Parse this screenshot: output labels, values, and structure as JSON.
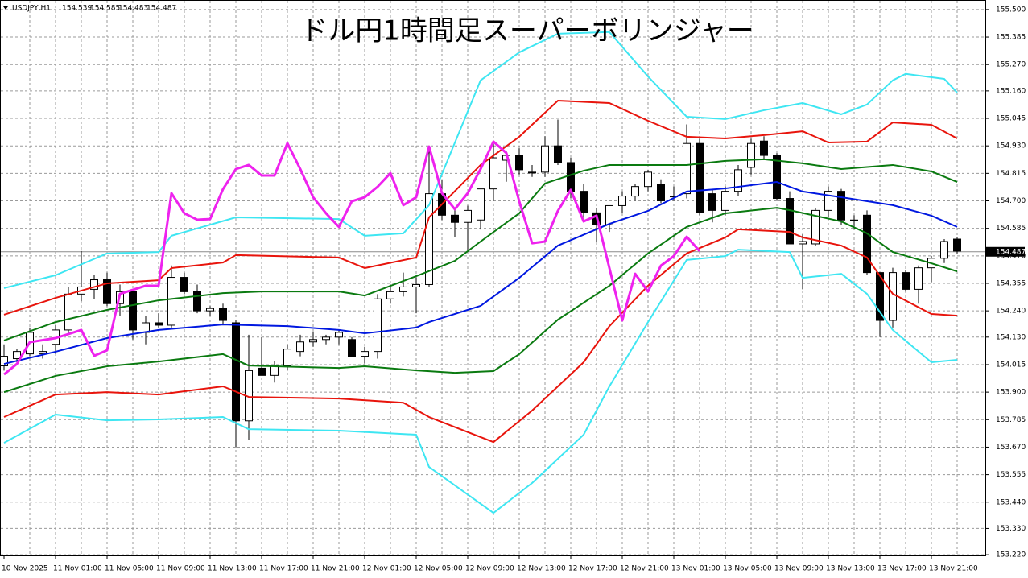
{
  "chart_data": {
    "type": "candlestick",
    "title": "ドル円1時間足スーパーボリンジャー",
    "header": {
      "symbol": "USDJPY,H1",
      "open": 154.539,
      "high": 154.585,
      "low": 154.483,
      "close": 154.487
    },
    "categories": [
      "10 Nov 2025",
      null,
      null,
      null,
      "11 Nov 01:00",
      null,
      null,
      null,
      "11 Nov 05:00",
      null,
      null,
      null,
      "11 Nov 09:00",
      null,
      null,
      null,
      "11 Nov 13:00",
      null,
      null,
      null,
      "11 Nov 17:00",
      null,
      null,
      null,
      "11 Nov 21:00",
      null,
      null,
      null,
      "12 Nov 01:00",
      null,
      null,
      null,
      "12 Nov 05:00",
      null,
      null,
      null,
      "12 Nov 09:00",
      null,
      null,
      null,
      "12 Nov 13:00",
      null,
      null,
      null,
      "12 Nov 17:00",
      null,
      null,
      null,
      "12 Nov 21:00",
      null,
      null,
      null,
      "13 Nov 01:00",
      null,
      null,
      null,
      "13 Nov 05:00",
      null,
      null,
      null,
      "13 Nov 09:00",
      null,
      null,
      null,
      "13 Nov 13:00",
      null,
      null,
      null,
      "13 Nov 17:00",
      null,
      null,
      null,
      "13 Nov 21:00",
      null,
      null
    ],
    "open": [
      154.01,
      154.04,
      154.06,
      154.06,
      154.1,
      154.16,
      154.31,
      154.33,
      154.37,
      154.27,
      154.32,
      154.15,
      154.19,
      154.18,
      154.38,
      154.32,
      154.24,
      154.25,
      154.19,
      153.78,
      154.0,
      153.97,
      154.01,
      154.07,
      154.11,
      154.12,
      154.13,
      154.12,
      154.05,
      154.07,
      154.29,
      154.32,
      154.34,
      154.35,
      154.73,
      154.64,
      154.61,
      154.62,
      154.75,
      154.87,
      154.89,
      154.82,
      154.82,
      154.93,
      154.86,
      154.74,
      154.65,
      154.6,
      154.68,
      154.72,
      154.76,
      154.77,
      154.72,
      154.73,
      154.94,
      154.73,
      154.66,
      154.74,
      154.84,
      154.95,
      154.89,
      154.71,
      154.52,
      154.52,
      154.66,
      154.74,
      154.62,
      154.64,
      154.4,
      154.2,
      154.4,
      154.33,
      154.42,
      154.46,
      154.54
    ],
    "high": [
      154.1,
      154.08,
      154.17,
      154.1,
      154.18,
      154.34,
      154.49,
      154.39,
      154.4,
      154.35,
      154.33,
      154.22,
      154.23,
      154.43,
      154.4,
      154.35,
      154.26,
      154.27,
      154.2,
      154.14,
      154.13,
      154.03,
      154.1,
      154.14,
      154.15,
      154.14,
      154.16,
      154.13,
      154.09,
      154.31,
      154.35,
      154.4,
      154.38,
      154.93,
      154.79,
      154.67,
      154.68,
      154.75,
      154.94,
      154.91,
      154.92,
      154.85,
      154.97,
      155.04,
      154.88,
      154.77,
      154.67,
      154.68,
      154.74,
      154.77,
      154.83,
      154.79,
      154.76,
      155.02,
      154.96,
      154.75,
      154.76,
      154.85,
      154.96,
      154.97,
      154.9,
      154.74,
      154.56,
      154.67,
      154.76,
      154.75,
      154.64,
      154.66,
      154.4,
      154.42,
      154.41,
      154.43,
      154.47,
      154.54,
      154.55
    ],
    "low": [
      153.99,
      154.02,
      154.05,
      154.04,
      154.06,
      154.14,
      154.28,
      154.29,
      154.26,
      154.22,
      154.12,
      154.1,
      154.17,
      154.17,
      154.31,
      154.23,
      154.22,
      154.18,
      153.67,
      153.7,
      153.97,
      153.94,
      153.99,
      154.05,
      154.09,
      154.1,
      154.1,
      154.05,
      154.02,
      154.04,
      154.27,
      154.3,
      154.23,
      154.34,
      154.62,
      154.55,
      154.49,
      154.58,
      154.7,
      154.78,
      154.81,
      154.8,
      154.8,
      154.85,
      154.71,
      154.63,
      154.53,
      154.57,
      154.65,
      154.7,
      154.74,
      154.69,
      154.7,
      154.71,
      154.64,
      154.61,
      154.64,
      154.72,
      154.81,
      154.87,
      154.7,
      154.52,
      154.33,
      154.51,
      154.63,
      154.6,
      154.58,
      154.39,
      154.13,
      154.17,
      154.32,
      154.27,
      154.36,
      154.44,
      154.48
    ],
    "close": [
      154.05,
      154.07,
      154.15,
      154.07,
      154.16,
      154.31,
      154.34,
      154.37,
      154.27,
      154.32,
      154.16,
      154.19,
      154.18,
      154.38,
      154.32,
      154.24,
      154.25,
      154.2,
      153.78,
      153.99,
      153.97,
      154.01,
      154.08,
      154.11,
      154.12,
      154.13,
      154.15,
      154.05,
      154.07,
      154.29,
      154.32,
      154.34,
      154.35,
      154.73,
      154.64,
      154.61,
      154.66,
      154.75,
      154.88,
      154.89,
      154.83,
      154.82,
      154.93,
      154.86,
      154.74,
      154.65,
      154.6,
      154.68,
      154.72,
      154.76,
      154.82,
      154.7,
      154.72,
      154.94,
      154.65,
      154.66,
      154.74,
      154.83,
      154.94,
      154.89,
      154.71,
      154.52,
      154.53,
      154.66,
      154.74,
      154.62,
      154.62,
      154.4,
      154.2,
      154.4,
      154.33,
      154.42,
      154.46,
      154.53,
      154.49
    ],
    "up_color": "#ffffff",
    "down_color": "#000000",
    "lines": [
      {
        "color": "#3ee6f2",
        "x": [
          0,
          4,
          8,
          12,
          13,
          18,
          26,
          28,
          31,
          33,
          37,
          40,
          43,
          47,
          50,
          53,
          56,
          59,
          62,
          65,
          67,
          69,
          70,
          73,
          74
        ],
        "values": [
          154.335,
          154.389,
          154.48,
          154.486,
          154.554,
          154.631,
          154.624,
          154.554,
          154.564,
          154.682,
          155.204,
          155.321,
          155.399,
          155.406,
          155.22,
          155.052,
          155.042,
          155.079,
          155.109,
          155.062,
          155.103,
          155.204,
          155.231,
          155.21,
          155.153
        ]
      },
      {
        "color": "#e8140c",
        "x": [
          0,
          4,
          8,
          12,
          13,
          17,
          18,
          26,
          28,
          32,
          33,
          37,
          40,
          43,
          47,
          50,
          53,
          56,
          59,
          62,
          64,
          67,
          69,
          72,
          74
        ],
        "values": [
          154.224,
          154.294,
          154.355,
          154.368,
          154.419,
          154.442,
          154.473,
          154.463,
          154.419,
          154.463,
          154.631,
          154.85,
          154.968,
          155.119,
          155.109,
          155.035,
          154.968,
          154.961,
          154.975,
          154.991,
          154.944,
          154.948,
          155.028,
          155.018,
          154.961
        ]
      },
      {
        "color": "#0a7a10",
        "x": [
          0,
          4,
          8,
          12,
          17,
          20,
          26,
          28,
          32,
          35,
          37,
          40,
          42,
          45,
          47,
          53,
          56,
          59,
          62,
          65,
          69,
          72,
          74
        ],
        "values": [
          154.116,
          154.193,
          154.244,
          154.284,
          154.314,
          154.321,
          154.321,
          154.304,
          154.385,
          154.449,
          154.53,
          154.648,
          154.773,
          154.826,
          154.85,
          154.85,
          154.867,
          154.874,
          154.857,
          154.833,
          154.85,
          154.823,
          154.779
        ]
      },
      {
        "color": "#0018e0",
        "x": [
          0,
          4,
          8,
          12,
          17,
          22,
          26,
          28,
          32,
          33,
          37,
          40,
          43,
          47,
          50,
          53,
          56,
          60,
          62,
          65,
          69,
          72,
          74
        ],
        "values": [
          154.018,
          154.069,
          154.126,
          154.16,
          154.183,
          154.176,
          154.16,
          154.146,
          154.17,
          154.193,
          154.261,
          154.378,
          154.513,
          154.604,
          154.658,
          154.739,
          154.752,
          154.779,
          154.739,
          154.715,
          154.682,
          154.638,
          154.591
        ]
      },
      {
        "color": "#0a7a10",
        "x": [
          0,
          4,
          8,
          12,
          17,
          19,
          26,
          28,
          32,
          35,
          38,
          40,
          43,
          47,
          50,
          53,
          56,
          60,
          61,
          65,
          67,
          69,
          72,
          74
        ],
        "values": [
          153.9,
          153.968,
          154.008,
          154.028,
          154.059,
          154.011,
          154.001,
          154.008,
          153.991,
          153.981,
          153.988,
          154.059,
          154.203,
          154.345,
          154.48,
          154.591,
          154.648,
          154.671,
          154.661,
          154.614,
          154.564,
          154.486,
          154.439,
          154.405
        ]
      },
      {
        "color": "#e8140c",
        "x": [
          0,
          4,
          8,
          12,
          17,
          19,
          26,
          31,
          33,
          38,
          41,
          45,
          47,
          50,
          53,
          56,
          57,
          61,
          62,
          65,
          67,
          69,
          72,
          74
        ],
        "values": [
          153.796,
          153.89,
          153.9,
          153.89,
          153.924,
          153.88,
          153.873,
          153.856,
          153.796,
          153.691,
          153.823,
          154.025,
          154.176,
          154.345,
          154.48,
          154.547,
          154.581,
          154.57,
          154.547,
          154.513,
          154.463,
          154.311,
          154.227,
          154.22
        ]
      },
      {
        "color": "#3ee6f2",
        "x": [
          0,
          4,
          8,
          12,
          17,
          19,
          26,
          32,
          33,
          38,
          41,
          45,
          47,
          50,
          53,
          56,
          57,
          61,
          62,
          65,
          67,
          69,
          72,
          74
        ],
        "values": [
          153.688,
          153.806,
          153.782,
          153.786,
          153.796,
          153.745,
          153.739,
          153.722,
          153.587,
          153.395,
          153.52,
          153.722,
          153.924,
          154.193,
          154.453,
          154.469,
          154.496,
          154.486,
          154.378,
          154.395,
          154.311,
          154.16,
          154.025,
          154.035
        ]
      },
      {
        "color": "#ee22ee",
        "width": 3,
        "x": [
          0,
          1,
          2,
          4,
          6,
          7,
          8,
          9,
          11,
          12,
          13,
          14,
          15,
          16,
          17,
          18,
          19,
          20,
          21,
          22,
          23,
          24,
          25,
          26,
          27,
          28,
          29,
          30,
          31,
          32,
          33,
          34,
          35,
          36,
          37,
          38,
          39,
          40,
          41,
          42,
          43,
          44,
          45,
          46,
          48,
          49,
          50,
          51,
          52,
          53,
          54
        ],
        "values": [
          153.974,
          154.018,
          154.109,
          154.126,
          154.16,
          154.052,
          154.075,
          154.311,
          154.345,
          154.345,
          154.732,
          154.648,
          154.621,
          154.624,
          154.749,
          154.833,
          154.85,
          154.806,
          154.806,
          154.941,
          154.833,
          154.715,
          154.648,
          154.591,
          154.698,
          154.715,
          154.759,
          154.816,
          154.682,
          154.715,
          154.927,
          154.732,
          154.665,
          154.732,
          154.833,
          154.948,
          154.9,
          154.698,
          154.523,
          154.53,
          154.658,
          154.746,
          154.614,
          154.638,
          154.2,
          154.395,
          154.321,
          154.429,
          154.469,
          154.55,
          154.49
        ]
      }
    ],
    "current_price": 154.487,
    "ylim": [
      153.217,
      155.54
    ],
    "yticks": [
      {
        "value": 155.5,
        "label": "155.500"
      },
      155.385,
      {
        "value": 155.27,
        "label": "155.270"
      },
      {
        "value": 155.16,
        "label": "155.160"
      },
      155.045,
      {
        "value": 154.93,
        "label": "154.930"
      },
      154.815,
      {
        "value": 154.7,
        "label": "154.700"
      },
      154.585,
      {
        "value": 154.47,
        "label": "154.470"
      },
      154.355,
      {
        "value": 154.24,
        "label": "154.240"
      },
      {
        "value": 154.13,
        "label": "154.130"
      },
      154.015,
      {
        "value": 153.9,
        "label": "153.900"
      },
      153.785,
      {
        "value": 153.67,
        "label": "153.670"
      },
      153.555,
      {
        "value": 153.44,
        "label": "153.440"
      },
      {
        "value": 153.33,
        "label": "153.330"
      },
      {
        "value": 153.22,
        "label": "153.220"
      }
    ],
    "grid": true
  }
}
